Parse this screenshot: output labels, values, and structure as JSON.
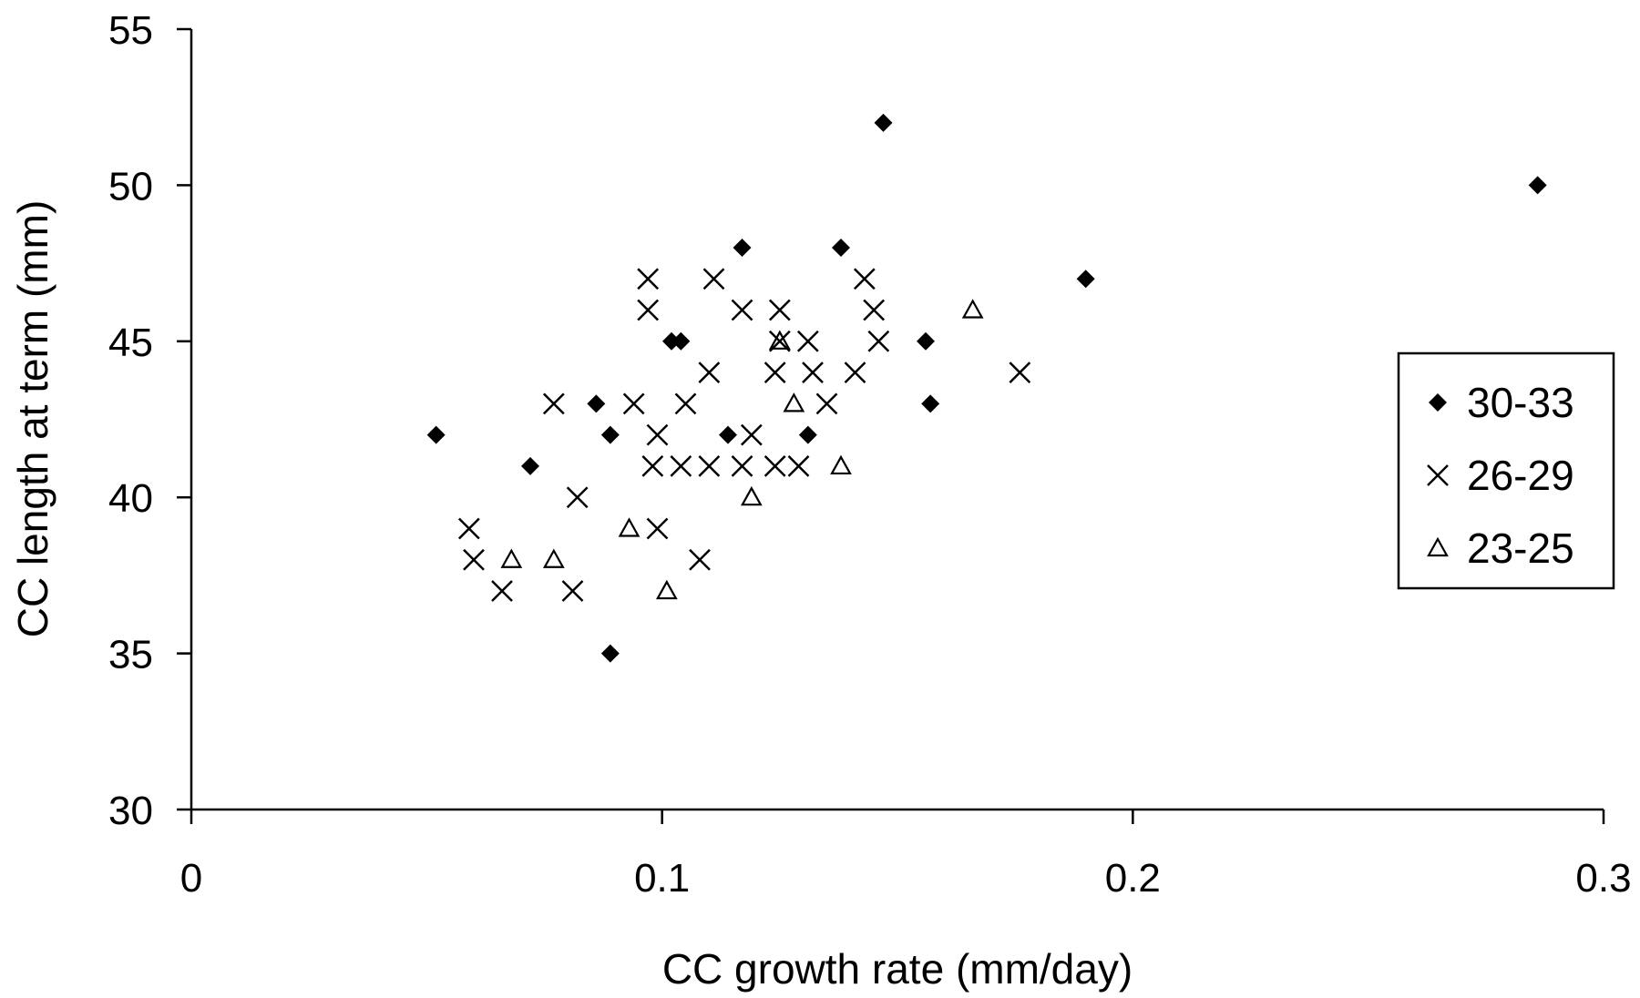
{
  "chart_data": {
    "type": "scatter",
    "title": "",
    "xlabel": "CC growth rate (mm/day)",
    "ylabel": "CC length at term (mm)",
    "xlim": [
      0,
      0.3
    ],
    "ylim": [
      30,
      55
    ],
    "xticks": [
      0,
      0.1,
      0.2,
      0.3
    ],
    "xtick_labels": [
      "0",
      "0.1",
      "0.2",
      "0.3"
    ],
    "yticks": [
      30,
      35,
      40,
      45,
      50,
      55
    ],
    "ytick_labels": [
      "30",
      "35",
      "40",
      "45",
      "50",
      "55"
    ],
    "grid": false,
    "legend_position": "right",
    "series": [
      {
        "name": "30-33",
        "marker": "diamond",
        "points": [
          [
            0.052,
            42
          ],
          [
            0.072,
            41
          ],
          [
            0.086,
            43
          ],
          [
            0.089,
            42
          ],
          [
            0.089,
            35
          ],
          [
            0.102,
            45
          ],
          [
            0.104,
            45
          ],
          [
            0.114,
            42
          ],
          [
            0.117,
            48
          ],
          [
            0.131,
            42
          ],
          [
            0.138,
            48
          ],
          [
            0.147,
            52
          ],
          [
            0.156,
            45
          ],
          [
            0.157,
            43
          ],
          [
            0.19,
            47
          ],
          [
            0.286,
            50
          ]
        ]
      },
      {
        "name": "26-29",
        "marker": "cross",
        "points": [
          [
            0.059,
            39
          ],
          [
            0.06,
            38
          ],
          [
            0.066,
            37
          ],
          [
            0.077,
            43
          ],
          [
            0.081,
            37
          ],
          [
            0.082,
            40
          ],
          [
            0.094,
            43
          ],
          [
            0.097,
            47
          ],
          [
            0.097,
            46
          ],
          [
            0.098,
            41
          ],
          [
            0.099,
            42
          ],
          [
            0.099,
            39
          ],
          [
            0.104,
            41
          ],
          [
            0.105,
            43
          ],
          [
            0.108,
            38
          ],
          [
            0.11,
            41
          ],
          [
            0.11,
            44
          ],
          [
            0.111,
            47
          ],
          [
            0.117,
            41
          ],
          [
            0.117,
            46
          ],
          [
            0.119,
            42
          ],
          [
            0.124,
            41
          ],
          [
            0.124,
            44
          ],
          [
            0.125,
            46
          ],
          [
            0.125,
            45
          ],
          [
            0.129,
            41
          ],
          [
            0.131,
            45
          ],
          [
            0.132,
            44
          ],
          [
            0.135,
            43
          ],
          [
            0.141,
            44
          ],
          [
            0.143,
            47
          ],
          [
            0.145,
            46
          ],
          [
            0.146,
            45
          ],
          [
            0.176,
            44
          ]
        ]
      },
      {
        "name": "23-25",
        "marker": "triangle",
        "points": [
          [
            0.068,
            38
          ],
          [
            0.077,
            38
          ],
          [
            0.093,
            39
          ],
          [
            0.101,
            37
          ],
          [
            0.119,
            40
          ],
          [
            0.125,
            45
          ],
          [
            0.128,
            43
          ],
          [
            0.138,
            41
          ],
          [
            0.166,
            46
          ]
        ]
      }
    ]
  }
}
